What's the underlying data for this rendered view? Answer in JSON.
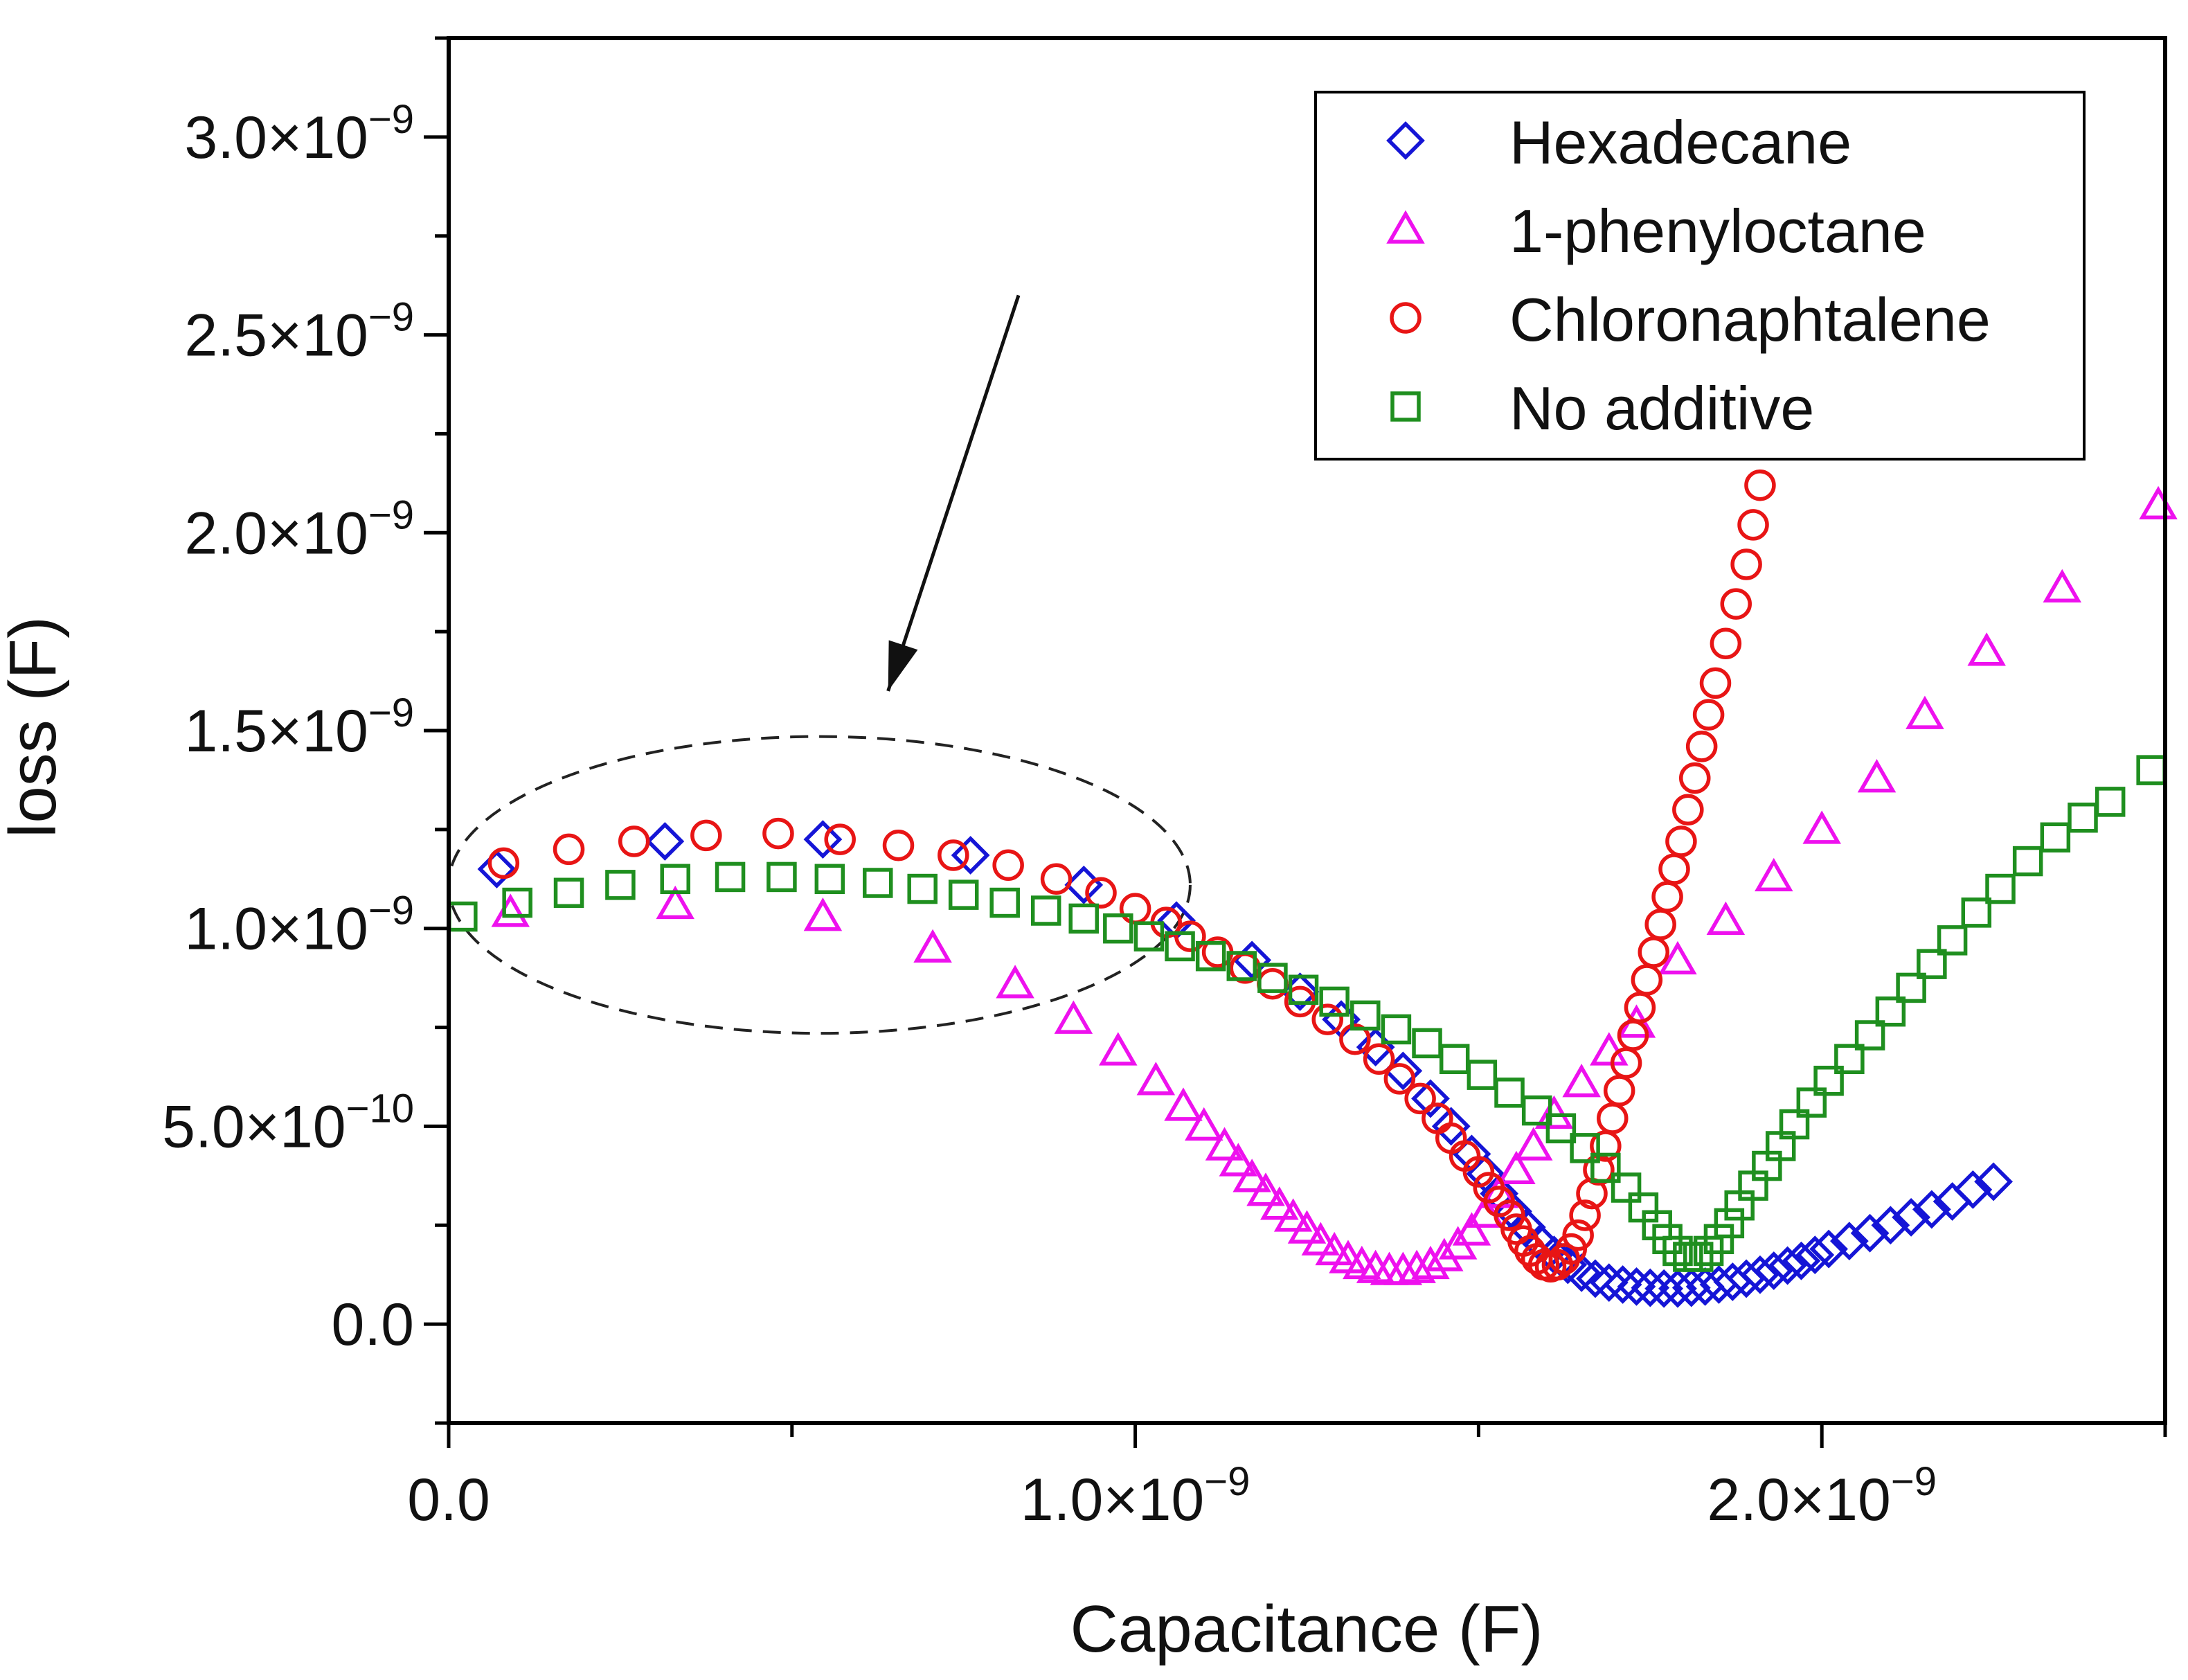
{
  "chart_data": {
    "type": "scatter",
    "xlabel": "Capacitance (F)",
    "ylabel": "loss (F)",
    "xlim": [
      0,
      2.5e-09
    ],
    "ylim": [
      -2.5e-10,
      3.25e-09
    ],
    "x_ticks": [
      {
        "value": 0,
        "label": "0.0"
      },
      {
        "value": 1e-09,
        "label": "1.0×10",
        "exp": "−9"
      },
      {
        "value": 2e-09,
        "label": "2.0×10",
        "exp": "−9"
      }
    ],
    "y_ticks": [
      {
        "value": 0,
        "label": "0.0"
      },
      {
        "value": 5e-10,
        "label": "5.0×10",
        "exp": "−10"
      },
      {
        "value": 1e-09,
        "label": "1.0×10",
        "exp": "−9"
      },
      {
        "value": 1.5e-09,
        "label": "1.5×10",
        "exp": "−9"
      },
      {
        "value": 2e-09,
        "label": "2.0×10",
        "exp": "−9"
      },
      {
        "value": 2.5e-09,
        "label": "2.5×10",
        "exp": "−9"
      },
      {
        "value": 3e-09,
        "label": "3.0×10",
        "exp": "−9"
      }
    ],
    "legend_position": "top-right",
    "annotations": {
      "ellipse": {
        "cx": 5.4e-10,
        "cy": 1.11e-09,
        "rx": 5.4e-10,
        "ry": 3.75e-10
      },
      "arrow": {
        "from": [
          8.3e-10,
          2.6e-09
        ],
        "to": [
          6.4e-10,
          1.6e-09
        ]
      }
    },
    "series": [
      {
        "name": "Hexadecane",
        "marker": "diamond",
        "color": "#1515d6",
        "points": [
          [
            7e-11,
            1.15e-09
          ],
          [
            3.15e-10,
            1.22e-09
          ],
          [
            5.45e-10,
            1.225e-09
          ],
          [
            7.6e-10,
            1.185e-09
          ],
          [
            9.25e-10,
            1.11e-09
          ],
          [
            1.06e-09,
            1.02e-09
          ],
          [
            1.17e-09,
            9.2e-10
          ],
          [
            1.24e-09,
            8.4e-10
          ],
          [
            1.3e-09,
            7.7e-10
          ],
          [
            1.35e-09,
            7e-10
          ],
          [
            1.39e-09,
            6.4e-10
          ],
          [
            1.43e-09,
            5.7e-10
          ],
          [
            1.46e-09,
            5e-10
          ],
          [
            1.49e-09,
            4.3e-10
          ],
          [
            1.51e-09,
            3.8e-10
          ],
          [
            1.53e-09,
            3.3e-10
          ],
          [
            1.55e-09,
            2.85e-10
          ],
          [
            1.57e-09,
            2.45e-10
          ],
          [
            1.59e-09,
            2.05e-10
          ],
          [
            1.61e-09,
            1.75e-10
          ],
          [
            1.63e-09,
            1.5e-10
          ],
          [
            1.65e-09,
            1.3e-10
          ],
          [
            1.67e-09,
            1.15e-10
          ],
          [
            1.69e-09,
            1.05e-10
          ],
          [
            1.71e-09,
            1e-10
          ],
          [
            1.73e-09,
            9.5e-11
          ],
          [
            1.75e-09,
            9.2e-11
          ],
          [
            1.77e-09,
            9e-11
          ],
          [
            1.79e-09,
            9e-11
          ],
          [
            1.81e-09,
            9.2e-11
          ],
          [
            1.83e-09,
            9.5e-11
          ],
          [
            1.85e-09,
            1e-10
          ],
          [
            1.87e-09,
            1.07e-10
          ],
          [
            1.89e-09,
            1.15e-10
          ],
          [
            1.91e-09,
            1.25e-10
          ],
          [
            1.93e-09,
            1.35e-10
          ],
          [
            1.95e-09,
            1.48e-10
          ],
          [
            1.97e-09,
            1.6e-10
          ],
          [
            1.99e-09,
            1.75e-10
          ],
          [
            2.01e-09,
            1.9e-10
          ],
          [
            2.04e-09,
            2.1e-10
          ],
          [
            2.07e-09,
            2.3e-10
          ],
          [
            2.1e-09,
            2.5e-10
          ],
          [
            2.13e-09,
            2.7e-10
          ],
          [
            2.16e-09,
            2.9e-10
          ],
          [
            2.19e-09,
            3.1e-10
          ],
          [
            2.22e-09,
            3.4e-10
          ],
          [
            2.25e-09,
            3.6e-10
          ]
        ]
      },
      {
        "name": "1-phenyloctane",
        "marker": "triangle",
        "color": "#ee11ee",
        "points": [
          [
            9e-11,
            1.04e-09
          ],
          [
            3.3e-10,
            1.06e-09
          ],
          [
            5.45e-10,
            1.03e-09
          ],
          [
            7.05e-10,
            9.5e-10
          ],
          [
            8.25e-10,
            8.6e-10
          ],
          [
            9.1e-10,
            7.7e-10
          ],
          [
            9.75e-10,
            6.9e-10
          ],
          [
            1.03e-09,
            6.15e-10
          ],
          [
            1.07e-09,
            5.5e-10
          ],
          [
            1.1e-09,
            5e-10
          ],
          [
            1.13e-09,
            4.5e-10
          ],
          [
            1.15e-09,
            4.1e-10
          ],
          [
            1.17e-09,
            3.7e-10
          ],
          [
            1.19e-09,
            3.35e-10
          ],
          [
            1.21e-09,
            3e-10
          ],
          [
            1.23e-09,
            2.7e-10
          ],
          [
            1.25e-09,
            2.4e-10
          ],
          [
            1.27e-09,
            2.1e-10
          ],
          [
            1.29e-09,
            1.85e-10
          ],
          [
            1.31e-09,
            1.65e-10
          ],
          [
            1.33e-09,
            1.5e-10
          ],
          [
            1.35e-09,
            1.4e-10
          ],
          [
            1.37e-09,
            1.35e-10
          ],
          [
            1.39e-09,
            1.35e-10
          ],
          [
            1.41e-09,
            1.4e-10
          ],
          [
            1.43e-09,
            1.5e-10
          ],
          [
            1.45e-09,
            1.7e-10
          ],
          [
            1.47e-09,
            2e-10
          ],
          [
            1.49e-09,
            2.35e-10
          ],
          [
            1.51e-09,
            2.8e-10
          ],
          [
            1.53e-09,
            3.3e-10
          ],
          [
            1.555e-09,
            3.9e-10
          ],
          [
            1.58e-09,
            4.5e-10
          ],
          [
            1.61e-09,
            5.3e-10
          ],
          [
            1.65e-09,
            6.1e-10
          ],
          [
            1.69e-09,
            6.9e-10
          ],
          [
            1.73e-09,
            7.6e-10
          ],
          [
            1.79e-09,
            9.2e-10
          ],
          [
            1.86e-09,
            1.02e-09
          ],
          [
            1.93e-09,
            1.13e-09
          ],
          [
            2e-09,
            1.25e-09
          ],
          [
            2.08e-09,
            1.38e-09
          ],
          [
            2.15e-09,
            1.54e-09
          ],
          [
            2.24e-09,
            1.7e-09
          ],
          [
            2.35e-09,
            1.86e-09
          ],
          [
            2.49e-09,
            2.07e-09
          ]
        ]
      },
      {
        "name": "Chloronaphtalene",
        "marker": "circle",
        "color": "#e81515",
        "points": [
          [
            8e-11,
            1.165e-09
          ],
          [
            1.75e-10,
            1.2e-09
          ],
          [
            2.7e-10,
            1.22e-09
          ],
          [
            3.75e-10,
            1.235e-09
          ],
          [
            4.8e-10,
            1.24e-09
          ],
          [
            5.7e-10,
            1.225e-09
          ],
          [
            6.55e-10,
            1.21e-09
          ],
          [
            7.35e-10,
            1.185e-09
          ],
          [
            8.15e-10,
            1.16e-09
          ],
          [
            8.85e-10,
            1.125e-09
          ],
          [
            9.5e-10,
            1.09e-09
          ],
          [
            1e-09,
            1.05e-09
          ],
          [
            1.045e-09,
            1.015e-09
          ],
          [
            1.08e-09,
            9.8e-10
          ],
          [
            1.12e-09,
            9.4e-10
          ],
          [
            1.16e-09,
            9e-10
          ],
          [
            1.2e-09,
            8.6e-10
          ],
          [
            1.24e-09,
            8.15e-10
          ],
          [
            1.28e-09,
            7.7e-10
          ],
          [
            1.32e-09,
            7.2e-10
          ],
          [
            1.355e-09,
            6.7e-10
          ],
          [
            1.385e-09,
            6.2e-10
          ],
          [
            1.415e-09,
            5.7e-10
          ],
          [
            1.44e-09,
            5.2e-10
          ],
          [
            1.46e-09,
            4.7e-10
          ],
          [
            1.48e-09,
            4.25e-10
          ],
          [
            1.5e-09,
            3.85e-10
          ],
          [
            1.515e-09,
            3.45e-10
          ],
          [
            1.53e-09,
            3.1e-10
          ],
          [
            1.545e-09,
            2.75e-10
          ],
          [
            1.555e-09,
            2.4e-10
          ],
          [
            1.565e-09,
            2.1e-10
          ],
          [
            1.575e-09,
            1.85e-10
          ],
          [
            1.585e-09,
            1.65e-10
          ],
          [
            1.595e-09,
            1.5e-10
          ],
          [
            1.605e-09,
            1.45e-10
          ],
          [
            1.615e-09,
            1.5e-10
          ],
          [
            1.625e-09,
            1.65e-10
          ],
          [
            1.635e-09,
            1.9e-10
          ],
          [
            1.645e-09,
            2.25e-10
          ],
          [
            1.655e-09,
            2.75e-10
          ],
          [
            1.665e-09,
            3.3e-10
          ],
          [
            1.675e-09,
            3.9e-10
          ],
          [
            1.685e-09,
            4.5e-10
          ],
          [
            1.695e-09,
            5.2e-10
          ],
          [
            1.705e-09,
            5.9e-10
          ],
          [
            1.715e-09,
            6.6e-10
          ],
          [
            1.725e-09,
            7.3e-10
          ],
          [
            1.735e-09,
            8e-10
          ],
          [
            1.745e-09,
            8.7e-10
          ],
          [
            1.755e-09,
            9.4e-10
          ],
          [
            1.765e-09,
            1.01e-09
          ],
          [
            1.775e-09,
            1.08e-09
          ],
          [
            1.785e-09,
            1.15e-09
          ],
          [
            1.795e-09,
            1.22e-09
          ],
          [
            1.805e-09,
            1.3e-09
          ],
          [
            1.815e-09,
            1.38e-09
          ],
          [
            1.825e-09,
            1.46e-09
          ],
          [
            1.835e-09,
            1.54e-09
          ],
          [
            1.845e-09,
            1.62e-09
          ],
          [
            1.86e-09,
            1.72e-09
          ],
          [
            1.875e-09,
            1.82e-09
          ],
          [
            1.89e-09,
            1.92e-09
          ],
          [
            1.9e-09,
            2.02e-09
          ],
          [
            1.91e-09,
            2.12e-09
          ]
        ]
      },
      {
        "name": "No additive",
        "marker": "square",
        "color": "#1f8f1f",
        "points": [
          [
            2e-11,
            1.03e-09
          ],
          [
            1e-10,
            1.065e-09
          ],
          [
            1.75e-10,
            1.09e-09
          ],
          [
            2.5e-10,
            1.11e-09
          ],
          [
            3.3e-10,
            1.125e-09
          ],
          [
            4.1e-10,
            1.13e-09
          ],
          [
            4.85e-10,
            1.13e-09
          ],
          [
            5.55e-10,
            1.125e-09
          ],
          [
            6.25e-10,
            1.115e-09
          ],
          [
            6.9e-10,
            1.1e-09
          ],
          [
            7.5e-10,
            1.085e-09
          ],
          [
            8.1e-10,
            1.065e-09
          ],
          [
            8.7e-10,
            1.045e-09
          ],
          [
            9.25e-10,
            1.025e-09
          ],
          [
            9.75e-10,
            1e-09
          ],
          [
            1.02e-09,
            9.8e-10
          ],
          [
            1.065e-09,
            9.55e-10
          ],
          [
            1.11e-09,
            9.3e-10
          ],
          [
            1.155e-09,
            9.05e-10
          ],
          [
            1.2e-09,
            8.75e-10
          ],
          [
            1.245e-09,
            8.45e-10
          ],
          [
            1.29e-09,
            8.15e-10
          ],
          [
            1.335e-09,
            7.8e-10
          ],
          [
            1.38e-09,
            7.45e-10
          ],
          [
            1.425e-09,
            7.1e-10
          ],
          [
            1.465e-09,
            6.7e-10
          ],
          [
            1.505e-09,
            6.3e-10
          ],
          [
            1.545e-09,
            5.85e-10
          ],
          [
            1.585e-09,
            5.4e-10
          ],
          [
            1.62e-09,
            4.95e-10
          ],
          [
            1.655e-09,
            4.45e-10
          ],
          [
            1.685e-09,
            3.95e-10
          ],
          [
            1.715e-09,
            3.45e-10
          ],
          [
            1.74e-09,
            2.95e-10
          ],
          [
            1.76e-09,
            2.5e-10
          ],
          [
            1.775e-09,
            2.15e-10
          ],
          [
            1.79e-09,
            1.85e-10
          ],
          [
            1.805e-09,
            1.7e-10
          ],
          [
            1.82e-09,
            1.7e-10
          ],
          [
            1.835e-09,
            1.85e-10
          ],
          [
            1.85e-09,
            2.15e-10
          ],
          [
            1.865e-09,
            2.55e-10
          ],
          [
            1.88e-09,
            3e-10
          ],
          [
            1.9e-09,
            3.5e-10
          ],
          [
            1.92e-09,
            4e-10
          ],
          [
            1.94e-09,
            4.5e-10
          ],
          [
            1.96e-09,
            5.05e-10
          ],
          [
            1.985e-09,
            5.6e-10
          ],
          [
            2.01e-09,
            6.15e-10
          ],
          [
            2.04e-09,
            6.7e-10
          ],
          [
            2.07e-09,
            7.3e-10
          ],
          [
            2.1e-09,
            7.9e-10
          ],
          [
            2.13e-09,
            8.5e-10
          ],
          [
            2.16e-09,
            9.1e-10
          ],
          [
            2.19e-09,
            9.7e-10
          ],
          [
            2.225e-09,
            1.04e-09
          ],
          [
            2.26e-09,
            1.1e-09
          ],
          [
            2.3e-09,
            1.17e-09
          ],
          [
            2.34e-09,
            1.23e-09
          ],
          [
            2.38e-09,
            1.28e-09
          ],
          [
            2.42e-09,
            1.32e-09
          ],
          [
            2.48e-09,
            1.4e-09
          ]
        ]
      }
    ]
  }
}
